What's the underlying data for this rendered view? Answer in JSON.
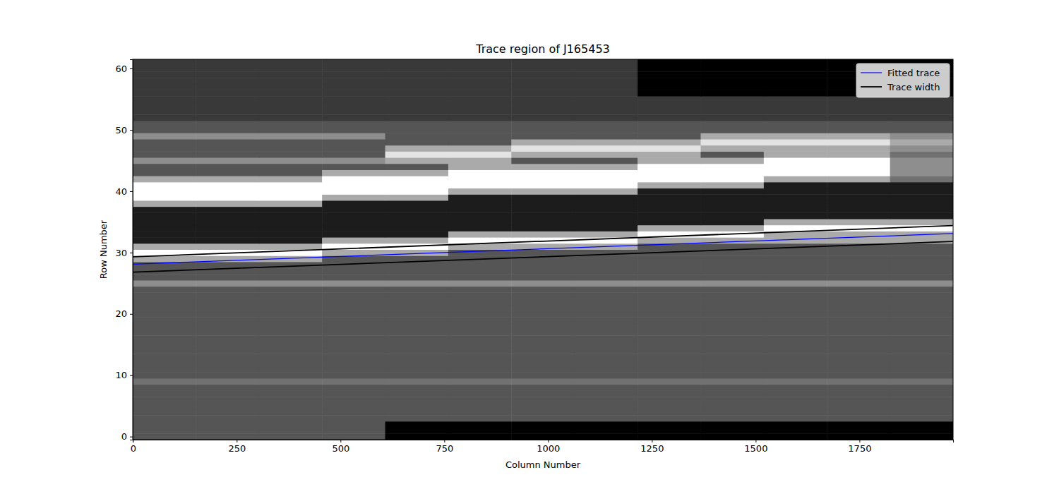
{
  "chart_data": {
    "type": "heatmap",
    "title": "Trace region of J165453",
    "x_label": "Column Number",
    "y_label": "Row Number",
    "xlim": [
      -0.5,
      1975.5
    ],
    "ylim": [
      -0.5,
      61.5
    ],
    "xticks": [
      0,
      250,
      500,
      750,
      1000,
      1250,
      1500,
      1750
    ],
    "yticks": [
      0,
      10,
      20,
      30,
      40,
      50,
      60
    ],
    "legend": "upper right",
    "image": {
      "zlim": [
        0,
        9
      ],
      "x_edges": [
        -0.5,
        151.5,
        303.5,
        455.5,
        607.5,
        759.5,
        911.5,
        1063.5,
        1215.5,
        1367.5,
        1519.5,
        1671.5,
        1823.5,
        1975.5
      ],
      "y_edges": [
        -0.5,
        0.5,
        1.5,
        2.5,
        3.5,
        4.5,
        5.5,
        6.5,
        7.5,
        8.5,
        9.5,
        10.5,
        11.5,
        12.5,
        13.5,
        14.5,
        15.5,
        16.5,
        17.5,
        18.5,
        19.5,
        20.5,
        21.5,
        22.5,
        23.5,
        24.5,
        25.5,
        26.5,
        27.5,
        28.5,
        29.5,
        30.5,
        31.5,
        32.5,
        33.5,
        34.5,
        35.5,
        36.5,
        37.5,
        38.5,
        39.5,
        40.5,
        41.5,
        42.5,
        43.5,
        44.5,
        45.5,
        46.5,
        47.5,
        48.5,
        49.5,
        50.5,
        51.5,
        52.5,
        53.5,
        54.5,
        55.5,
        56.5,
        57.5,
        58.5,
        59.5,
        60.5,
        61.5
      ],
      "cells": [
        [
          3,
          3,
          3,
          3,
          0,
          0,
          0,
          0,
          0,
          0,
          0,
          0,
          0
        ],
        [
          3,
          3,
          3,
          3,
          0,
          0,
          0,
          0,
          0,
          0,
          0,
          0,
          0
        ],
        [
          3,
          3,
          3,
          3,
          0,
          0,
          0,
          0,
          0,
          0,
          0,
          0,
          0
        ],
        [
          3,
          3,
          3,
          3,
          3,
          3,
          3,
          3,
          3,
          3,
          3,
          3,
          3
        ],
        [
          3,
          3,
          3,
          3,
          3,
          3,
          3,
          3,
          3,
          3,
          3,
          3,
          3
        ],
        [
          3,
          3,
          3,
          3,
          3,
          3,
          3,
          3,
          3,
          3,
          3,
          3,
          3
        ],
        [
          3,
          3,
          3,
          3,
          3,
          3,
          3,
          3,
          3,
          3,
          3,
          3,
          3
        ],
        [
          3,
          3,
          3,
          3,
          3,
          3,
          3,
          3,
          3,
          3,
          3,
          3,
          3
        ],
        [
          3,
          3,
          3,
          3,
          3,
          3,
          3,
          3,
          3,
          3,
          3,
          3,
          3
        ],
        [
          4,
          4,
          4,
          4,
          4,
          4,
          4,
          4,
          4,
          4,
          4,
          4,
          4
        ],
        [
          3,
          3,
          3,
          3,
          3,
          3,
          3,
          3,
          3,
          3,
          3,
          3,
          3
        ],
        [
          3,
          3,
          3,
          3,
          3,
          3,
          3,
          3,
          3,
          3,
          3,
          3,
          3
        ],
        [
          3,
          3,
          3,
          3,
          3,
          3,
          3,
          3,
          3,
          3,
          3,
          3,
          3
        ],
        [
          3,
          3,
          3,
          3,
          3,
          3,
          3,
          3,
          3,
          3,
          3,
          3,
          3
        ],
        [
          3,
          3,
          3,
          3,
          3,
          3,
          3,
          3,
          3,
          3,
          3,
          3,
          3
        ],
        [
          3,
          3,
          3,
          3,
          3,
          3,
          3,
          3,
          3,
          3,
          3,
          3,
          3
        ],
        [
          3,
          3,
          3,
          3,
          3,
          3,
          3,
          3,
          3,
          3,
          3,
          3,
          3
        ],
        [
          3,
          3,
          3,
          3,
          3,
          3,
          3,
          3,
          3,
          3,
          3,
          3,
          3
        ],
        [
          3,
          3,
          3,
          3,
          3,
          3,
          3,
          3,
          3,
          3,
          3,
          3,
          3
        ],
        [
          3,
          3,
          3,
          3,
          3,
          3,
          3,
          3,
          3,
          3,
          3,
          3,
          3
        ],
        [
          3,
          3,
          3,
          3,
          3,
          3,
          3,
          3,
          3,
          3,
          3,
          3,
          3
        ],
        [
          3,
          3,
          3,
          3,
          3,
          3,
          3,
          3,
          3,
          3,
          3,
          3,
          3
        ],
        [
          3,
          3,
          3,
          3,
          3,
          3,
          3,
          3,
          3,
          3,
          3,
          3,
          3
        ],
        [
          3,
          3,
          3,
          3,
          3,
          3,
          3,
          3,
          3,
          3,
          3,
          3,
          3
        ],
        [
          3,
          3,
          3,
          3,
          3,
          3,
          3,
          3,
          3,
          3,
          3,
          3,
          3
        ],
        [
          5,
          5,
          5,
          5,
          5,
          5,
          5,
          5,
          5,
          5,
          5,
          5,
          5
        ],
        [
          3,
          3,
          3,
          3,
          3,
          3,
          3,
          3,
          3,
          3,
          3,
          3,
          3
        ],
        [
          3,
          3,
          3,
          3,
          3,
          3,
          3,
          3,
          3,
          3,
          3,
          3,
          3
        ],
        [
          3,
          3,
          3,
          3,
          3,
          3,
          3,
          3,
          3,
          3,
          3,
          3,
          3
        ],
        [
          6,
          6,
          6,
          3,
          3,
          3,
          3,
          3,
          3,
          3,
          3,
          3,
          3
        ],
        [
          9,
          9,
          9,
          6,
          6,
          3,
          3,
          3,
          3,
          3,
          3,
          3,
          3
        ],
        [
          6,
          6,
          6,
          9,
          9,
          6,
          6,
          6,
          3,
          3,
          3,
          3,
          3
        ],
        [
          1,
          1,
          1,
          6,
          6,
          9,
          9,
          9,
          6,
          6,
          6,
          6,
          6
        ],
        [
          1,
          1,
          1,
          1,
          1,
          6,
          6,
          6,
          9,
          9,
          6,
          6,
          6
        ],
        [
          1,
          1,
          1,
          1,
          1,
          1,
          1,
          1,
          6,
          6,
          9,
          9,
          9
        ],
        [
          1,
          1,
          1,
          1,
          1,
          1,
          1,
          1,
          1,
          1,
          6,
          6,
          6
        ],
        [
          1,
          1,
          1,
          1,
          1,
          1,
          1,
          1,
          1,
          1,
          1,
          1,
          1
        ],
        [
          1,
          1,
          1,
          1,
          1,
          1,
          1,
          1,
          1,
          1,
          1,
          1,
          1
        ],
        [
          6,
          6,
          6,
          1,
          1,
          1,
          1,
          1,
          1,
          1,
          1,
          1,
          1
        ],
        [
          9,
          9,
          9,
          6,
          6,
          1,
          1,
          1,
          1,
          1,
          1,
          1,
          1
        ],
        [
          9,
          9,
          9,
          9,
          9,
          6,
          6,
          6,
          1,
          1,
          1,
          1,
          1
        ],
        [
          9,
          9,
          9,
          9,
          9,
          9,
          9,
          9,
          6,
          6,
          1,
          1,
          1
        ],
        [
          6,
          6,
          6,
          9,
          9,
          9,
          9,
          9,
          9,
          9,
          6,
          6,
          4
        ],
        [
          3,
          3,
          3,
          6,
          6,
          9,
          9,
          9,
          9,
          9,
          9,
          9,
          5
        ],
        [
          3,
          3,
          3,
          3,
          3,
          6,
          6,
          6,
          9,
          9,
          9,
          9,
          5
        ],
        [
          5,
          5,
          5,
          5,
          6,
          6,
          3,
          3,
          6,
          6,
          9,
          9,
          5
        ],
        [
          3,
          3,
          3,
          3,
          8,
          8,
          6,
          6,
          6,
          3,
          6,
          6,
          4
        ],
        [
          3,
          3,
          3,
          3,
          6,
          6,
          8,
          8,
          8,
          6,
          6,
          6,
          5
        ],
        [
          3,
          3,
          3,
          3,
          3,
          3,
          6,
          6,
          6,
          8,
          8,
          8,
          6
        ],
        [
          5,
          5,
          5,
          5,
          3,
          3,
          3,
          3,
          3,
          6,
          6,
          6,
          5
        ],
        [
          3,
          3,
          3,
          3,
          3,
          3,
          3,
          3,
          3,
          3,
          3,
          3,
          3
        ],
        [
          3,
          3,
          3,
          3,
          3,
          3,
          3,
          3,
          3,
          3,
          3,
          3,
          3
        ],
        [
          2,
          2,
          2,
          2,
          2,
          2,
          2,
          2,
          2,
          2,
          2,
          2,
          2
        ],
        [
          2,
          2,
          2,
          2,
          2,
          2,
          2,
          2,
          2,
          2,
          2,
          2,
          2
        ],
        [
          2,
          2,
          2,
          2,
          2,
          2,
          2,
          2,
          2,
          2,
          2,
          2,
          2
        ],
        [
          2,
          2,
          2,
          2,
          2,
          2,
          2,
          2,
          2,
          2,
          2,
          2,
          2
        ],
        [
          2,
          2,
          2,
          2,
          2,
          2,
          2,
          2,
          0,
          0,
          0,
          0,
          0
        ],
        [
          2,
          2,
          2,
          2,
          2,
          2,
          2,
          2,
          0,
          0,
          0,
          0,
          0
        ],
        [
          2,
          2,
          2,
          2,
          2,
          2,
          2,
          2,
          0,
          0,
          0,
          0,
          0
        ],
        [
          2,
          2,
          2,
          2,
          2,
          2,
          2,
          2,
          0,
          0,
          0,
          0,
          0
        ],
        [
          2,
          2,
          2,
          2,
          2,
          2,
          2,
          2,
          0,
          0,
          0,
          0,
          0
        ],
        [
          2,
          2,
          2,
          2,
          2,
          2,
          2,
          2,
          0,
          0,
          0,
          0,
          0
        ]
      ]
    },
    "series": [
      {
        "name": "Fitted trace",
        "type": "line",
        "color": "blue",
        "x": [
          0,
          1975
        ],
        "values": [
          28.1,
          33.1
        ]
      },
      {
        "name": "Trace width",
        "type": "line",
        "color": "black",
        "x": [
          0,
          1975
        ],
        "values": [
          29.3,
          34.4
        ],
        "lower": [
          26.8,
          31.8
        ]
      }
    ]
  }
}
